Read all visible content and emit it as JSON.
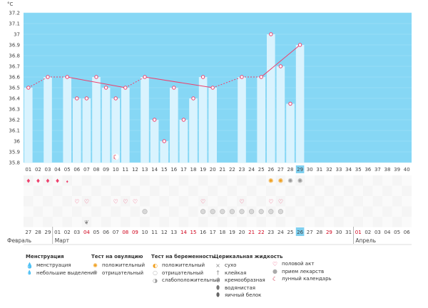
{
  "chart_data": {
    "type": "line",
    "title": "",
    "ylabel": "°C",
    "ylim": [
      35.8,
      37.2
    ],
    "yticks": [
      "37.2",
      "37.1",
      "37",
      "36.9",
      "36.8",
      "36.7",
      "36.6",
      "36.5",
      "36.4",
      "36.3",
      "36.2",
      "36.1",
      "36",
      "35.9",
      "35.8"
    ],
    "days": [
      "01",
      "02",
      "03",
      "04",
      "05",
      "06",
      "07",
      "08",
      "09",
      "10",
      "11",
      "12",
      "13",
      "14",
      "15",
      "16",
      "17",
      "18",
      "19",
      "20",
      "21",
      "22",
      "23",
      "24",
      "25",
      "26",
      "27",
      "28",
      "29",
      "30",
      "31",
      "32",
      "33",
      "34",
      "35",
      "36",
      "37",
      "38",
      "39",
      "40"
    ],
    "current_day": "29",
    "dates": [
      "27",
      "28",
      "29",
      "01",
      "02",
      "03",
      "04",
      "05",
      "06",
      "07",
      "08",
      "09",
      "10",
      "11",
      "12",
      "13",
      "14",
      "15",
      "16",
      "17",
      "18",
      "19",
      "20",
      "21",
      "22",
      "23",
      "24",
      "25",
      "26",
      "27",
      "28",
      "29",
      "30",
      "31",
      "01",
      "02",
      "03",
      "04",
      "05",
      "06"
    ],
    "red_dates": [
      6,
      10,
      11,
      16,
      17,
      23,
      24,
      31,
      34
    ],
    "today_date_index": 28,
    "months": [
      "Февраль",
      "Март",
      "Апрель"
    ],
    "temps": [
      36.5,
      null,
      36.6,
      null,
      36.6,
      36.4,
      36.4,
      36.6,
      36.5,
      36.4,
      36.5,
      null,
      36.6,
      36.2,
      36.0,
      36.5,
      36.2,
      36.4,
      36.6,
      36.5,
      null,
      null,
      36.6,
      null,
      36.6,
      37.0,
      36.7,
      36.35,
      36.9
    ],
    "segments": [
      {
        "from": 0,
        "to": 2,
        "style": "dashed"
      },
      {
        "from": 2,
        "to": 4,
        "style": "dashed"
      },
      {
        "from": 4,
        "to": 10,
        "style": "solid"
      },
      {
        "from": 10,
        "to": 12,
        "style": "dashed"
      },
      {
        "from": 12,
        "to": 19,
        "style": "solid"
      },
      {
        "from": 19,
        "to": 22,
        "style": "dashed"
      },
      {
        "from": 22,
        "to": 24,
        "style": "dashed"
      },
      {
        "from": 24,
        "to": 28,
        "style": "solid"
      }
    ],
    "moon_day": 10
  },
  "marks": {
    "menstruation": [
      1,
      2,
      3,
      4
    ],
    "discharge": [
      5
    ],
    "sex": [
      6,
      7,
      10,
      11,
      12,
      19,
      23,
      26,
      27
    ],
    "ovulation_positive": [
      26,
      27
    ],
    "ovulation_negative": [
      28,
      29
    ],
    "pregnancy_weak": [
      13,
      19,
      20,
      21,
      22,
      23,
      24,
      25,
      26,
      27
    ],
    "medicine": [
      7
    ],
    "cervical_watery": [
      7
    ]
  },
  "colors": {
    "sky": "#86d7f5",
    "bar": "#d9f3fe",
    "line": "#ee3f6c",
    "today": "#7fd0f0"
  },
  "legend": {
    "menstruation": {
      "title": "Менструация",
      "items": [
        "менструация",
        "небольшие выделения"
      ]
    },
    "ovulation": {
      "title": "Тест на овуляцию",
      "items": [
        "положительный",
        "отрицательный"
      ]
    },
    "pregnancy": {
      "title": "Тест на беременность",
      "items": [
        "положительный",
        "отрицательный",
        "слабоположительный"
      ]
    },
    "cervical": {
      "title": "Церикальная жидкость",
      "items": [
        "сухо",
        "клейкая",
        "кремообразная",
        "водянистая",
        "яичный белок"
      ]
    },
    "other": {
      "items": [
        "половой акт",
        "прием лекарств",
        "лунный календарь"
      ]
    }
  }
}
